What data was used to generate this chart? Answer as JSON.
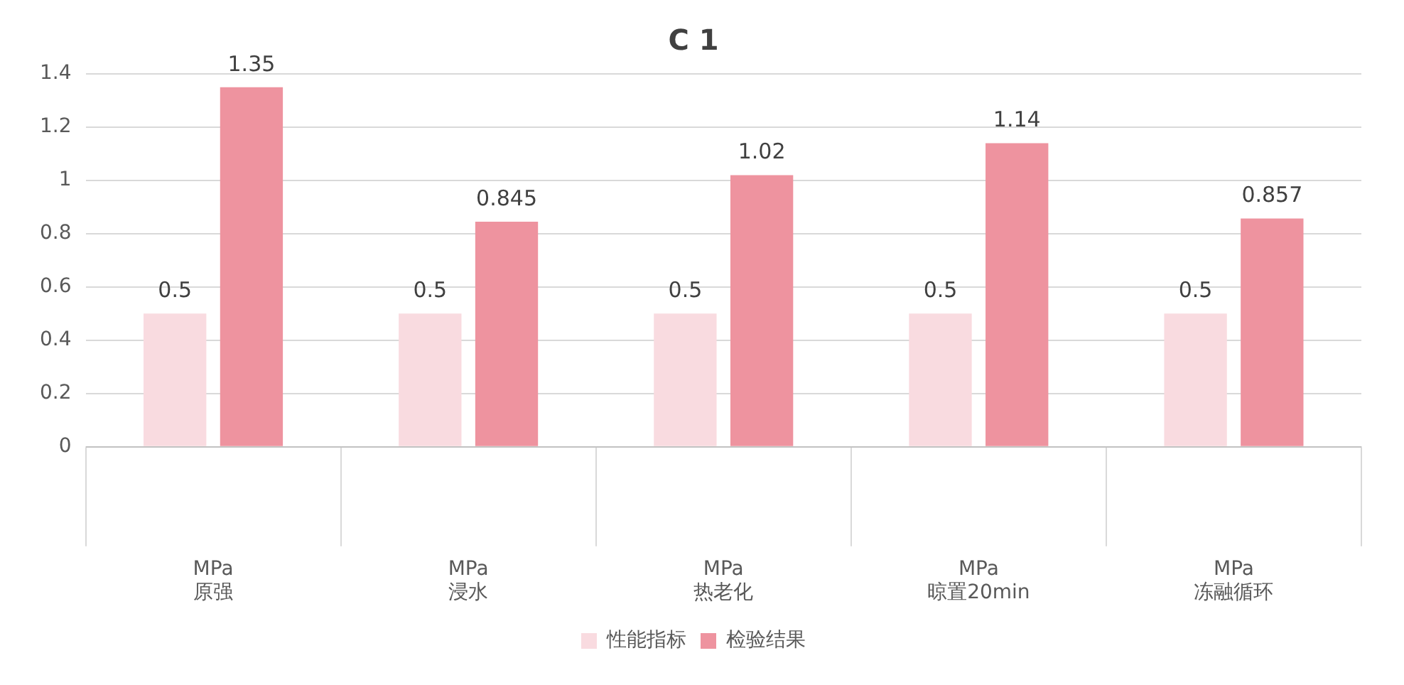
{
  "chart_data": {
    "type": "bar",
    "title": "C 1",
    "categories": [
      "MPa\n原强",
      "MPa\n浸水",
      "MPa\n热老化",
      "MPa\n晾置20min",
      "MPa\n冻融循环"
    ],
    "series": [
      {
        "name": "性能指标",
        "color": "#f9dbe0",
        "values": [
          0.5,
          0.5,
          0.5,
          0.5,
          0.5
        ]
      },
      {
        "name": "检验结果",
        "color": "#ee939f",
        "values": [
          1.35,
          0.845,
          1.02,
          1.14,
          0.857
        ]
      }
    ],
    "ylim": [
      0,
      1.4
    ],
    "yticks": [
      0,
      0.2,
      0.4,
      0.6,
      0.8,
      1,
      1.2,
      1.4
    ],
    "grid": "y",
    "legend": "bottom",
    "data_labels": true
  }
}
